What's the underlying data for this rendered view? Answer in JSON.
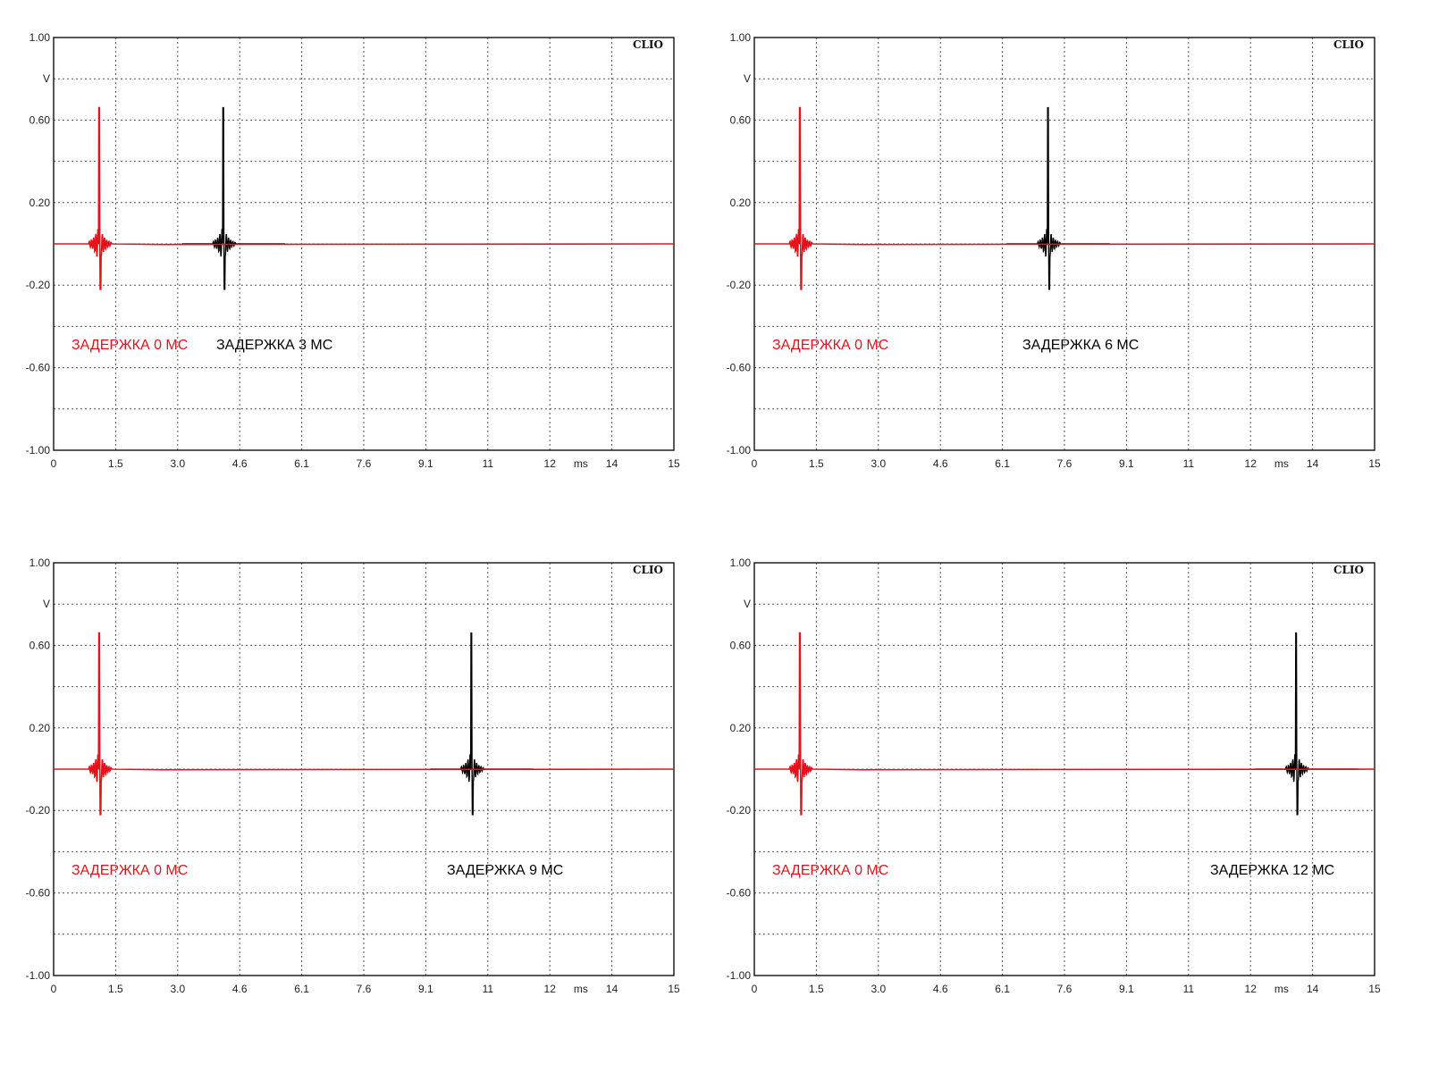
{
  "chart_data": [
    {
      "type": "line",
      "brand": "CLIO",
      "ylabel": "V",
      "xlabel": "ms",
      "xlim": [
        0,
        15
      ],
      "ylim": [
        -1.0,
        1.0
      ],
      "grid": true,
      "x_ticks": [
        "0",
        "1.5",
        "3.0",
        "4.6",
        "6.1",
        "7.6",
        "9.1",
        "11",
        "12",
        "14",
        "15"
      ],
      "y_ticks": [
        "1.00",
        "0.60",
        "0.20",
        "-0.20",
        "-0.60",
        "-1.00"
      ],
      "series": [
        {
          "label": "ЗАДЕРЖКА 0 МС",
          "color": "#e8111a",
          "peak_ms": 1.1,
          "peak_v": 0.66,
          "min_v": -0.22
        },
        {
          "label": "ЗАДЕРЖКА 3 МС",
          "color": "#000000",
          "peak_ms": 4.1,
          "peak_v": 0.66,
          "min_v": -0.22
        }
      ]
    },
    {
      "type": "line",
      "brand": "CLIO",
      "ylabel": "V",
      "xlabel": "ms",
      "xlim": [
        0,
        15
      ],
      "ylim": [
        -1.0,
        1.0
      ],
      "grid": true,
      "x_ticks": [
        "0",
        "1.5",
        "3.0",
        "4.6",
        "6.1",
        "7.6",
        "9.1",
        "11",
        "12",
        "14",
        "15"
      ],
      "y_ticks": [
        "1.00",
        "0.60",
        "0.20",
        "-0.20",
        "-0.60",
        "-1.00"
      ],
      "series": [
        {
          "label": "ЗАДЕРЖКА 0 МС",
          "color": "#e8111a",
          "peak_ms": 1.1,
          "peak_v": 0.66,
          "min_v": -0.22
        },
        {
          "label": "ЗАДЕРЖКА 6 МС",
          "color": "#000000",
          "peak_ms": 7.1,
          "peak_v": 0.66,
          "min_v": -0.22
        }
      ]
    },
    {
      "type": "line",
      "brand": "CLIO",
      "ylabel": "V",
      "xlabel": "ms",
      "xlim": [
        0,
        15
      ],
      "ylim": [
        -1.0,
        1.0
      ],
      "grid": true,
      "x_ticks": [
        "0",
        "1.5",
        "3.0",
        "4.6",
        "6.1",
        "7.6",
        "9.1",
        "11",
        "12",
        "14",
        "15"
      ],
      "y_ticks": [
        "1.00",
        "0.60",
        "0.20",
        "-0.20",
        "-0.60",
        "-1.00"
      ],
      "series": [
        {
          "label": "ЗАДЕРЖКА 0 МС",
          "color": "#e8111a",
          "peak_ms": 1.1,
          "peak_v": 0.66,
          "min_v": -0.22
        },
        {
          "label": "ЗАДЕРЖКА 9 МС",
          "color": "#000000",
          "peak_ms": 10.1,
          "peak_v": 0.66,
          "min_v": -0.22
        }
      ]
    },
    {
      "type": "line",
      "brand": "CLIO",
      "ylabel": "V",
      "xlabel": "ms",
      "xlim": [
        0,
        15
      ],
      "ylim": [
        -1.0,
        1.0
      ],
      "grid": true,
      "x_ticks": [
        "0",
        "1.5",
        "3.0",
        "4.6",
        "6.1",
        "7.6",
        "9.1",
        "11",
        "12",
        "14",
        "15"
      ],
      "y_ticks": [
        "1.00",
        "0.60",
        "0.20",
        "-0.20",
        "-0.60",
        "-1.00"
      ],
      "series": [
        {
          "label": "ЗАДЕРЖКА 0 МС",
          "color": "#e8111a",
          "peak_ms": 1.1,
          "peak_v": 0.66,
          "min_v": -0.22
        },
        {
          "label": "ЗАДЕРЖКА 12 МС",
          "color": "#000000",
          "peak_ms": 13.1,
          "peak_v": 0.66,
          "min_v": -0.22
        }
      ]
    }
  ]
}
